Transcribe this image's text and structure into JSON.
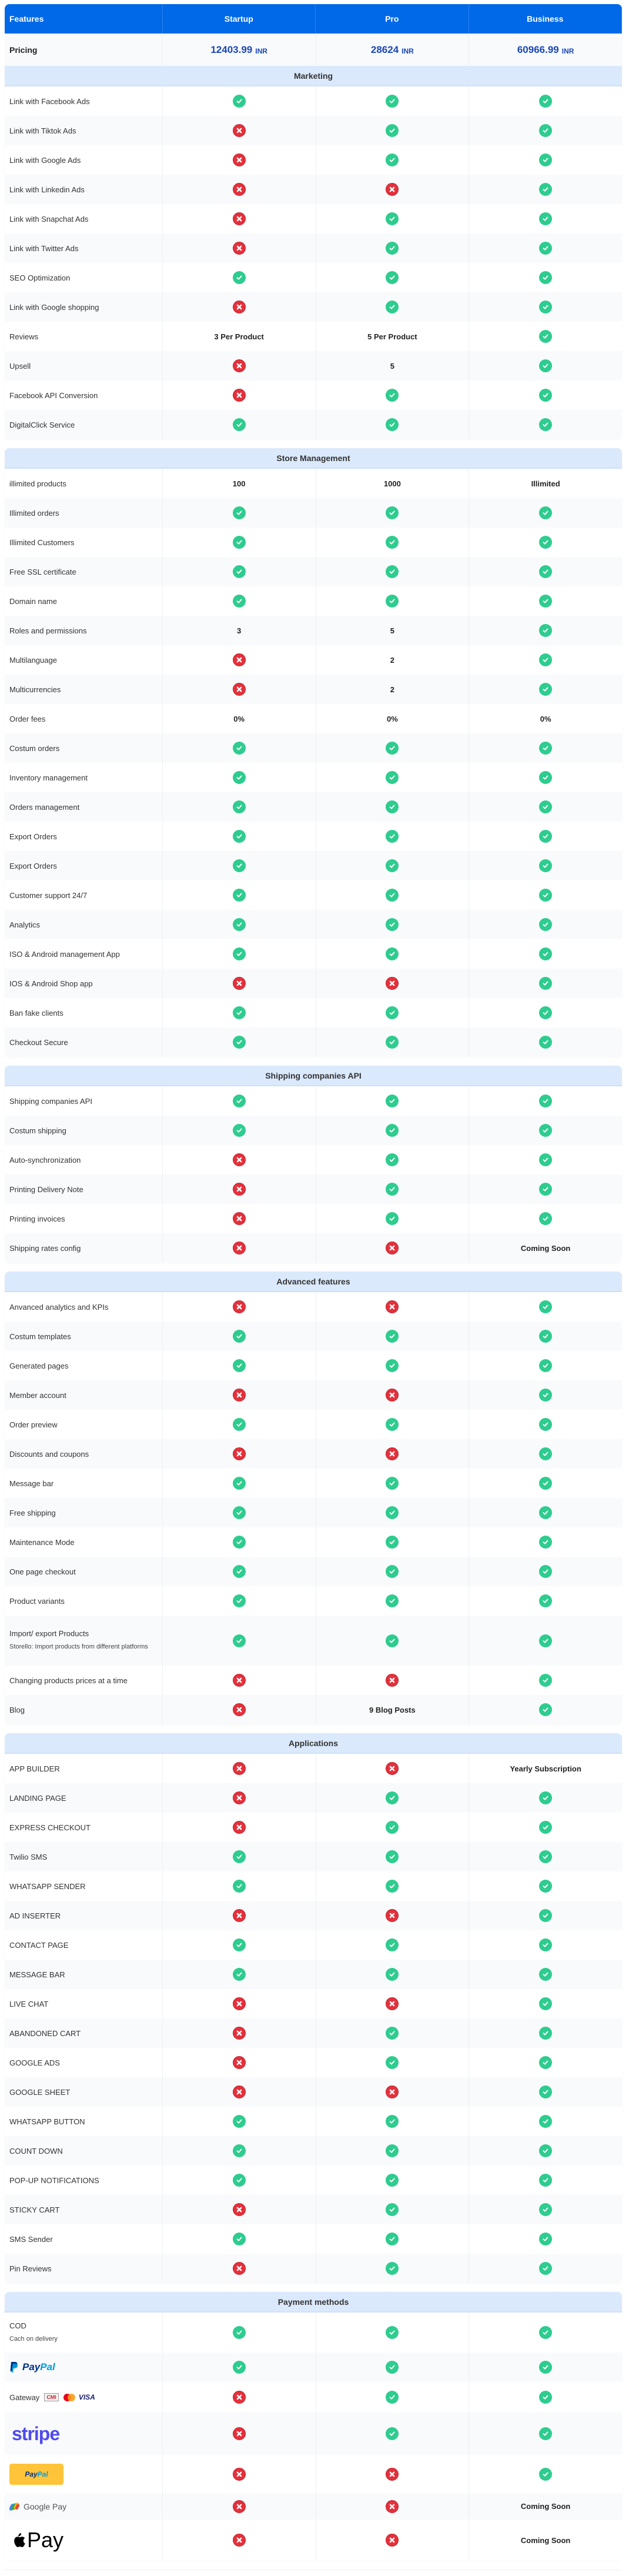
{
  "header": {
    "features": "Features",
    "plans": [
      "Startup",
      "Pro",
      "Business"
    ]
  },
  "pricing": {
    "label": "Pricing",
    "values": [
      {
        "amount": "12403.99",
        "currency": "INR"
      },
      {
        "amount": "28624",
        "currency": "INR"
      },
      {
        "amount": "60966.99",
        "currency": "INR"
      }
    ]
  },
  "colors": {
    "header_bg": "#0069e8",
    "section_bg": "#dbe9fc",
    "check": "#2ecc8f",
    "cross": "#e3313c",
    "price": "#1a47b8"
  },
  "sections": [
    {
      "title": "Marketing",
      "rows": [
        {
          "feature": "Link with Facebook Ads",
          "values": [
            "yes",
            "yes",
            "yes"
          ]
        },
        {
          "feature": "Link with Tiktok Ads",
          "values": [
            "no",
            "yes",
            "yes"
          ]
        },
        {
          "feature": "Link with Google Ads",
          "values": [
            "no",
            "yes",
            "yes"
          ]
        },
        {
          "feature": "Link with Linkedin Ads",
          "values": [
            "no",
            "no",
            "yes"
          ]
        },
        {
          "feature": "Link with Snapchat Ads",
          "values": [
            "no",
            "yes",
            "yes"
          ]
        },
        {
          "feature": "Link with Twitter Ads",
          "values": [
            "no",
            "yes",
            "yes"
          ]
        },
        {
          "feature": "SEO Optimization",
          "values": [
            "yes",
            "yes",
            "yes"
          ]
        },
        {
          "feature": "Link with Google shopping",
          "values": [
            "no",
            "yes",
            "yes"
          ]
        },
        {
          "feature": "Reviews",
          "values": [
            "3 Per Product",
            "5 Per Product",
            "yes"
          ]
        },
        {
          "feature": "Upsell",
          "values": [
            "no",
            "5",
            "yes"
          ]
        },
        {
          "feature": "Facebook API Conversion",
          "values": [
            "no",
            "yes",
            "yes"
          ]
        },
        {
          "feature": "DigitalClick Service",
          "values": [
            "yes",
            "yes",
            "yes"
          ]
        }
      ]
    },
    {
      "title": "Store Management",
      "rows": [
        {
          "feature": "illimited products",
          "values": [
            "100",
            "1000",
            "Illimited"
          ]
        },
        {
          "feature": "Illimited orders",
          "values": [
            "yes",
            "yes",
            "yes"
          ]
        },
        {
          "feature": "Illimited Customers",
          "values": [
            "yes",
            "yes",
            "yes"
          ]
        },
        {
          "feature": "Free SSL certificate",
          "values": [
            "yes",
            "yes",
            "yes"
          ]
        },
        {
          "feature": "Domain name",
          "values": [
            "yes",
            "yes",
            "yes"
          ]
        },
        {
          "feature": "Roles and permissions",
          "values": [
            "3",
            "5",
            "yes"
          ]
        },
        {
          "feature": "Multilanguage",
          "values": [
            "no",
            "2",
            "yes"
          ]
        },
        {
          "feature": "Multicurrencies",
          "values": [
            "no",
            "2",
            "yes"
          ]
        },
        {
          "feature": "Order fees",
          "values": [
            "0%",
            "0%",
            "0%"
          ]
        },
        {
          "feature": "Costum orders",
          "values": [
            "yes",
            "yes",
            "yes"
          ]
        },
        {
          "feature": "Inventory management",
          "values": [
            "yes",
            "yes",
            "yes"
          ]
        },
        {
          "feature": "Orders management",
          "values": [
            "yes",
            "yes",
            "yes"
          ]
        },
        {
          "feature": "Export Orders",
          "values": [
            "yes",
            "yes",
            "yes"
          ]
        },
        {
          "feature": "Export Orders",
          "values": [
            "yes",
            "yes",
            "yes"
          ]
        },
        {
          "feature": "Customer support 24/7",
          "values": [
            "yes",
            "yes",
            "yes"
          ]
        },
        {
          "feature": "Analytics",
          "values": [
            "yes",
            "yes",
            "yes"
          ]
        },
        {
          "feature": "ISO & Android management App",
          "values": [
            "yes",
            "yes",
            "yes"
          ]
        },
        {
          "feature": "IOS & Android Shop app",
          "values": [
            "no",
            "no",
            "yes"
          ]
        },
        {
          "feature": "Ban fake clients",
          "values": [
            "yes",
            "yes",
            "yes"
          ]
        },
        {
          "feature": "Checkout Secure",
          "values": [
            "yes",
            "yes",
            "yes"
          ]
        }
      ]
    },
    {
      "title": "Shipping companies API",
      "rows": [
        {
          "feature": "Shipping companies API",
          "values": [
            "yes",
            "yes",
            "yes"
          ]
        },
        {
          "feature": "Costum shipping",
          "values": [
            "yes",
            "yes",
            "yes"
          ]
        },
        {
          "feature": "Auto-synchronization",
          "values": [
            "no",
            "yes",
            "yes"
          ]
        },
        {
          "feature": "Printing Delivery Note",
          "values": [
            "no",
            "yes",
            "yes"
          ]
        },
        {
          "feature": "Printing invoices",
          "values": [
            "no",
            "yes",
            "yes"
          ]
        },
        {
          "feature": "Shipping rates config",
          "values": [
            "no",
            "no",
            "Coming Soon"
          ]
        }
      ]
    },
    {
      "title": "Advanced features",
      "rows": [
        {
          "feature": "Anvanced analytics and KPIs",
          "values": [
            "no",
            "no",
            "yes"
          ]
        },
        {
          "feature": "Costum templates",
          "values": [
            "yes",
            "yes",
            "yes"
          ]
        },
        {
          "feature": "Generated pages",
          "values": [
            "yes",
            "yes",
            "yes"
          ]
        },
        {
          "feature": "Member account",
          "values": [
            "no",
            "no",
            "yes"
          ]
        },
        {
          "feature": "Order preview",
          "values": [
            "yes",
            "yes",
            "yes"
          ]
        },
        {
          "feature": "Discounts and coupons",
          "values": [
            "no",
            "no",
            "yes"
          ]
        },
        {
          "feature": "Message bar",
          "values": [
            "yes",
            "yes",
            "yes"
          ]
        },
        {
          "feature": "Free shipping",
          "values": [
            "yes",
            "yes",
            "yes"
          ]
        },
        {
          "feature": "Maintenance Mode",
          "values": [
            "yes",
            "yes",
            "yes"
          ]
        },
        {
          "feature": "One page checkout",
          "values": [
            "yes",
            "yes",
            "yes"
          ]
        },
        {
          "feature": "Product variants",
          "values": [
            "yes",
            "yes",
            "yes"
          ]
        },
        {
          "feature": "Import/ export Products",
          "sub": "Storello: Import products from different platforms",
          "values": [
            "yes",
            "yes",
            "yes"
          ],
          "height": 85
        },
        {
          "feature": "Changing products prices at a time",
          "values": [
            "no",
            "no",
            "yes"
          ]
        },
        {
          "feature": "Blog",
          "values": [
            "no",
            "9 Blog Posts",
            "yes"
          ]
        }
      ]
    },
    {
      "title": "Applications",
      "rows": [
        {
          "feature": "APP BUILDER",
          "values": [
            "no",
            "no",
            "Yearly Subscription"
          ]
        },
        {
          "feature": "LANDING PAGE",
          "values": [
            "no",
            "yes",
            "yes"
          ]
        },
        {
          "feature": "EXPRESS CHECKOUT",
          "values": [
            "no",
            "yes",
            "yes"
          ]
        },
        {
          "feature": "Twilio SMS",
          "values": [
            "yes",
            "yes",
            "yes"
          ]
        },
        {
          "feature": "WHATSAPP SENDER",
          "values": [
            "yes",
            "yes",
            "yes"
          ]
        },
        {
          "feature": "AD INSERTER",
          "values": [
            "no",
            "no",
            "yes"
          ]
        },
        {
          "feature": "CONTACT PAGE",
          "values": [
            "yes",
            "yes",
            "yes"
          ]
        },
        {
          "feature": "MESSAGE BAR",
          "values": [
            "yes",
            "yes",
            "yes"
          ]
        },
        {
          "feature": "LIVE CHAT",
          "values": [
            "no",
            "no",
            "yes"
          ]
        },
        {
          "feature": "ABANDONED CART",
          "values": [
            "no",
            "yes",
            "yes"
          ]
        },
        {
          "feature": "GOOGLE ADS",
          "values": [
            "no",
            "yes",
            "yes"
          ]
        },
        {
          "feature": "GOOGLE SHEET",
          "values": [
            "no",
            "no",
            "yes"
          ]
        },
        {
          "feature": "WHATSAPP BUTTON",
          "values": [
            "yes",
            "yes",
            "yes"
          ]
        },
        {
          "feature": "COUNT DOWN",
          "values": [
            "yes",
            "yes",
            "yes"
          ]
        },
        {
          "feature": "POP-UP NOTIFICATIONS",
          "values": [
            "yes",
            "yes",
            "yes"
          ]
        },
        {
          "feature": "STICKY CART",
          "values": [
            "no",
            "yes",
            "yes"
          ]
        },
        {
          "feature": "SMS Sender",
          "values": [
            "yes",
            "yes",
            "yes"
          ]
        },
        {
          "feature": "Pin Reviews",
          "values": [
            "no",
            "yes",
            "yes"
          ]
        }
      ]
    }
  ],
  "payment": {
    "title": "Payment methods",
    "rows": [
      {
        "kind": "text",
        "feature": "COD",
        "sub": "Cach on delivery",
        "values": [
          "yes",
          "yes",
          "yes"
        ],
        "height": 68
      },
      {
        "kind": "paypal-logo",
        "feature": "PayPal",
        "logo_parts": [
          "Pay",
          "Pal"
        ],
        "values": [
          "yes",
          "yes",
          "yes"
        ],
        "height": 50
      },
      {
        "kind": "gateway",
        "feature": "Gateway",
        "badges": [
          "CMI",
          "mastercard",
          "VISA"
        ],
        "values": [
          "no",
          "yes",
          "yes"
        ],
        "height": 52
      },
      {
        "kind": "stripe",
        "feature": "stripe",
        "values": [
          "no",
          "yes",
          "yes"
        ],
        "height": 72
      },
      {
        "kind": "paypal-button",
        "feature": "PayPal",
        "logo_parts": [
          "Pay",
          "Pal"
        ],
        "values": [
          "no",
          "no",
          "yes"
        ],
        "height": 65
      },
      {
        "kind": "gpay",
        "feature": "Google Pay",
        "values": [
          "no",
          "no",
          "Coming Soon"
        ],
        "height": 45
      },
      {
        "kind": "applepay",
        "feature": "Pay",
        "values": [
          "no",
          "no",
          "Coming Soon"
        ],
        "height": 70
      }
    ]
  }
}
